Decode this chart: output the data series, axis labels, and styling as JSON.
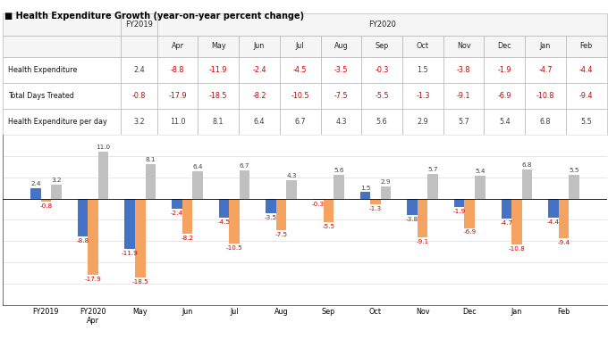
{
  "title": "Health Expenditure Growth (year-on-year percent change)",
  "categories": [
    "FY2019",
    "FY2020\nApr",
    "May",
    "Jun",
    "Jul",
    "Aug",
    "Sep",
    "Oct",
    "Nov",
    "Dec",
    "Jan",
    "Feb"
  ],
  "health_expenditure": [
    2.4,
    -8.8,
    -11.9,
    -2.4,
    -4.5,
    -3.5,
    -0.3,
    1.5,
    -3.8,
    -1.9,
    -4.7,
    -4.4
  ],
  "total_days_treated": [
    -0.8,
    -17.9,
    -18.5,
    -8.2,
    -10.5,
    -7.5,
    -5.5,
    -1.3,
    -9.1,
    -6.9,
    -10.8,
    -9.4
  ],
  "health_exp_per_day": [
    3.2,
    11.0,
    8.1,
    6.4,
    6.7,
    4.3,
    5.6,
    2.9,
    5.7,
    5.4,
    6.8,
    5.5
  ],
  "color_he": "#4472C4",
  "color_tdt": "#F4A460",
  "color_hepd": "#C0C0C0",
  "color_neg_text": "#CC0000",
  "color_pos_text": "#404040",
  "ylim": [
    -25.0,
    15.0
  ],
  "yticks": [
    -25.0,
    -20.0,
    -15.0,
    -10.0,
    -5.0,
    0.0,
    5.0,
    10.0,
    15.0
  ],
  "months": [
    "Apr",
    "May",
    "Jun",
    "Jul",
    "Aug",
    "Sep",
    "Oct",
    "Nov",
    "Dec",
    "Jan",
    "Feb"
  ],
  "table_row1_label": "Health Expenditure",
  "table_row2_label": "Total Days Treated",
  "table_row3_label": "Health Expenditure per day",
  "legend_labels": [
    "Health Expenditure",
    "Total Days Treated",
    "Health Expenditure per day"
  ]
}
